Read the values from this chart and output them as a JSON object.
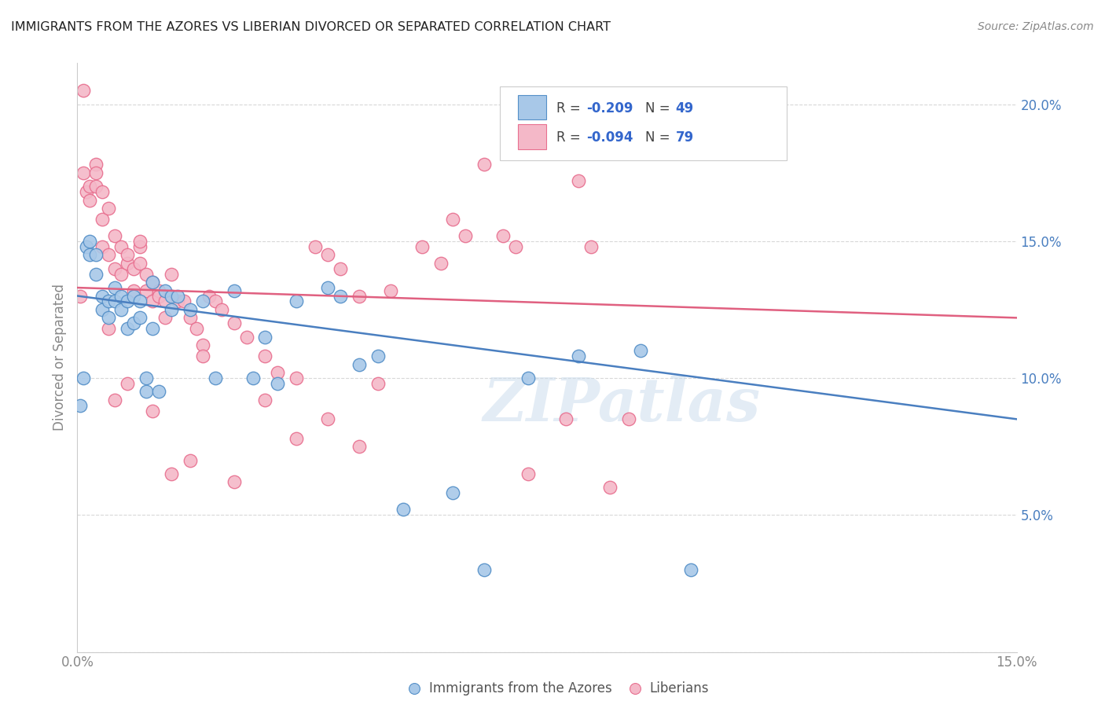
{
  "title": "IMMIGRANTS FROM THE AZORES VS LIBERIAN DIVORCED OR SEPARATED CORRELATION CHART",
  "source": "Source: ZipAtlas.com",
  "ylabel": "Divorced or Separated",
  "xlim": [
    0.0,
    0.15
  ],
  "ylim": [
    0.0,
    0.215
  ],
  "ytick_labels": [
    "",
    "5.0%",
    "10.0%",
    "15.0%",
    "20.0%"
  ],
  "ytick_values": [
    0.0,
    0.05,
    0.1,
    0.15,
    0.2
  ],
  "watermark": "ZIPatlas",
  "blue_color": "#a8c8e8",
  "pink_color": "#f4b8c8",
  "blue_edge_color": "#5590c8",
  "pink_edge_color": "#e87090",
  "blue_line_color": "#4a7fc0",
  "pink_line_color": "#e06080",
  "background_color": "#ffffff",
  "grid_color": "#d8d8d8",
  "blue_scatter_x": [
    0.0005,
    0.001,
    0.0015,
    0.002,
    0.002,
    0.003,
    0.003,
    0.004,
    0.004,
    0.005,
    0.005,
    0.006,
    0.006,
    0.007,
    0.007,
    0.008,
    0.008,
    0.009,
    0.009,
    0.01,
    0.01,
    0.011,
    0.011,
    0.012,
    0.012,
    0.013,
    0.014,
    0.015,
    0.015,
    0.016,
    0.018,
    0.02,
    0.022,
    0.025,
    0.028,
    0.03,
    0.032,
    0.035,
    0.04,
    0.042,
    0.045,
    0.048,
    0.052,
    0.06,
    0.065,
    0.072,
    0.08,
    0.09,
    0.098
  ],
  "blue_scatter_y": [
    0.09,
    0.1,
    0.148,
    0.15,
    0.145,
    0.145,
    0.138,
    0.13,
    0.125,
    0.128,
    0.122,
    0.133,
    0.128,
    0.13,
    0.125,
    0.128,
    0.118,
    0.13,
    0.12,
    0.128,
    0.122,
    0.1,
    0.095,
    0.135,
    0.118,
    0.095,
    0.132,
    0.13,
    0.125,
    0.13,
    0.125,
    0.128,
    0.1,
    0.132,
    0.1,
    0.115,
    0.098,
    0.128,
    0.133,
    0.13,
    0.105,
    0.108,
    0.052,
    0.058,
    0.03,
    0.1,
    0.108,
    0.11,
    0.03
  ],
  "pink_scatter_x": [
    0.0005,
    0.001,
    0.001,
    0.0015,
    0.002,
    0.002,
    0.003,
    0.003,
    0.004,
    0.004,
    0.005,
    0.005,
    0.006,
    0.006,
    0.007,
    0.007,
    0.008,
    0.008,
    0.009,
    0.009,
    0.01,
    0.01,
    0.011,
    0.011,
    0.012,
    0.012,
    0.013,
    0.013,
    0.014,
    0.014,
    0.015,
    0.016,
    0.017,
    0.018,
    0.019,
    0.02,
    0.021,
    0.022,
    0.023,
    0.025,
    0.027,
    0.03,
    0.032,
    0.035,
    0.038,
    0.04,
    0.042,
    0.045,
    0.048,
    0.05,
    0.055,
    0.058,
    0.06,
    0.062,
    0.065,
    0.068,
    0.07,
    0.072,
    0.075,
    0.078,
    0.08,
    0.082,
    0.085,
    0.088,
    0.003,
    0.004,
    0.005,
    0.006,
    0.008,
    0.01,
    0.012,
    0.015,
    0.018,
    0.02,
    0.025,
    0.03,
    0.035,
    0.04,
    0.045
  ],
  "pink_scatter_y": [
    0.13,
    0.205,
    0.175,
    0.168,
    0.17,
    0.165,
    0.178,
    0.17,
    0.158,
    0.148,
    0.145,
    0.162,
    0.14,
    0.152,
    0.148,
    0.138,
    0.142,
    0.145,
    0.14,
    0.132,
    0.148,
    0.142,
    0.132,
    0.138,
    0.135,
    0.128,
    0.132,
    0.13,
    0.128,
    0.122,
    0.138,
    0.128,
    0.128,
    0.122,
    0.118,
    0.112,
    0.13,
    0.128,
    0.125,
    0.12,
    0.115,
    0.108,
    0.102,
    0.1,
    0.148,
    0.145,
    0.14,
    0.13,
    0.098,
    0.132,
    0.148,
    0.142,
    0.158,
    0.152,
    0.178,
    0.152,
    0.148,
    0.065,
    0.19,
    0.085,
    0.172,
    0.148,
    0.06,
    0.085,
    0.175,
    0.168,
    0.118,
    0.092,
    0.098,
    0.15,
    0.088,
    0.065,
    0.07,
    0.108,
    0.062,
    0.092,
    0.078,
    0.085,
    0.075
  ],
  "blue_line_start_y": 0.13,
  "blue_line_end_y": 0.085,
  "pink_line_start_y": 0.133,
  "pink_line_end_y": 0.122
}
